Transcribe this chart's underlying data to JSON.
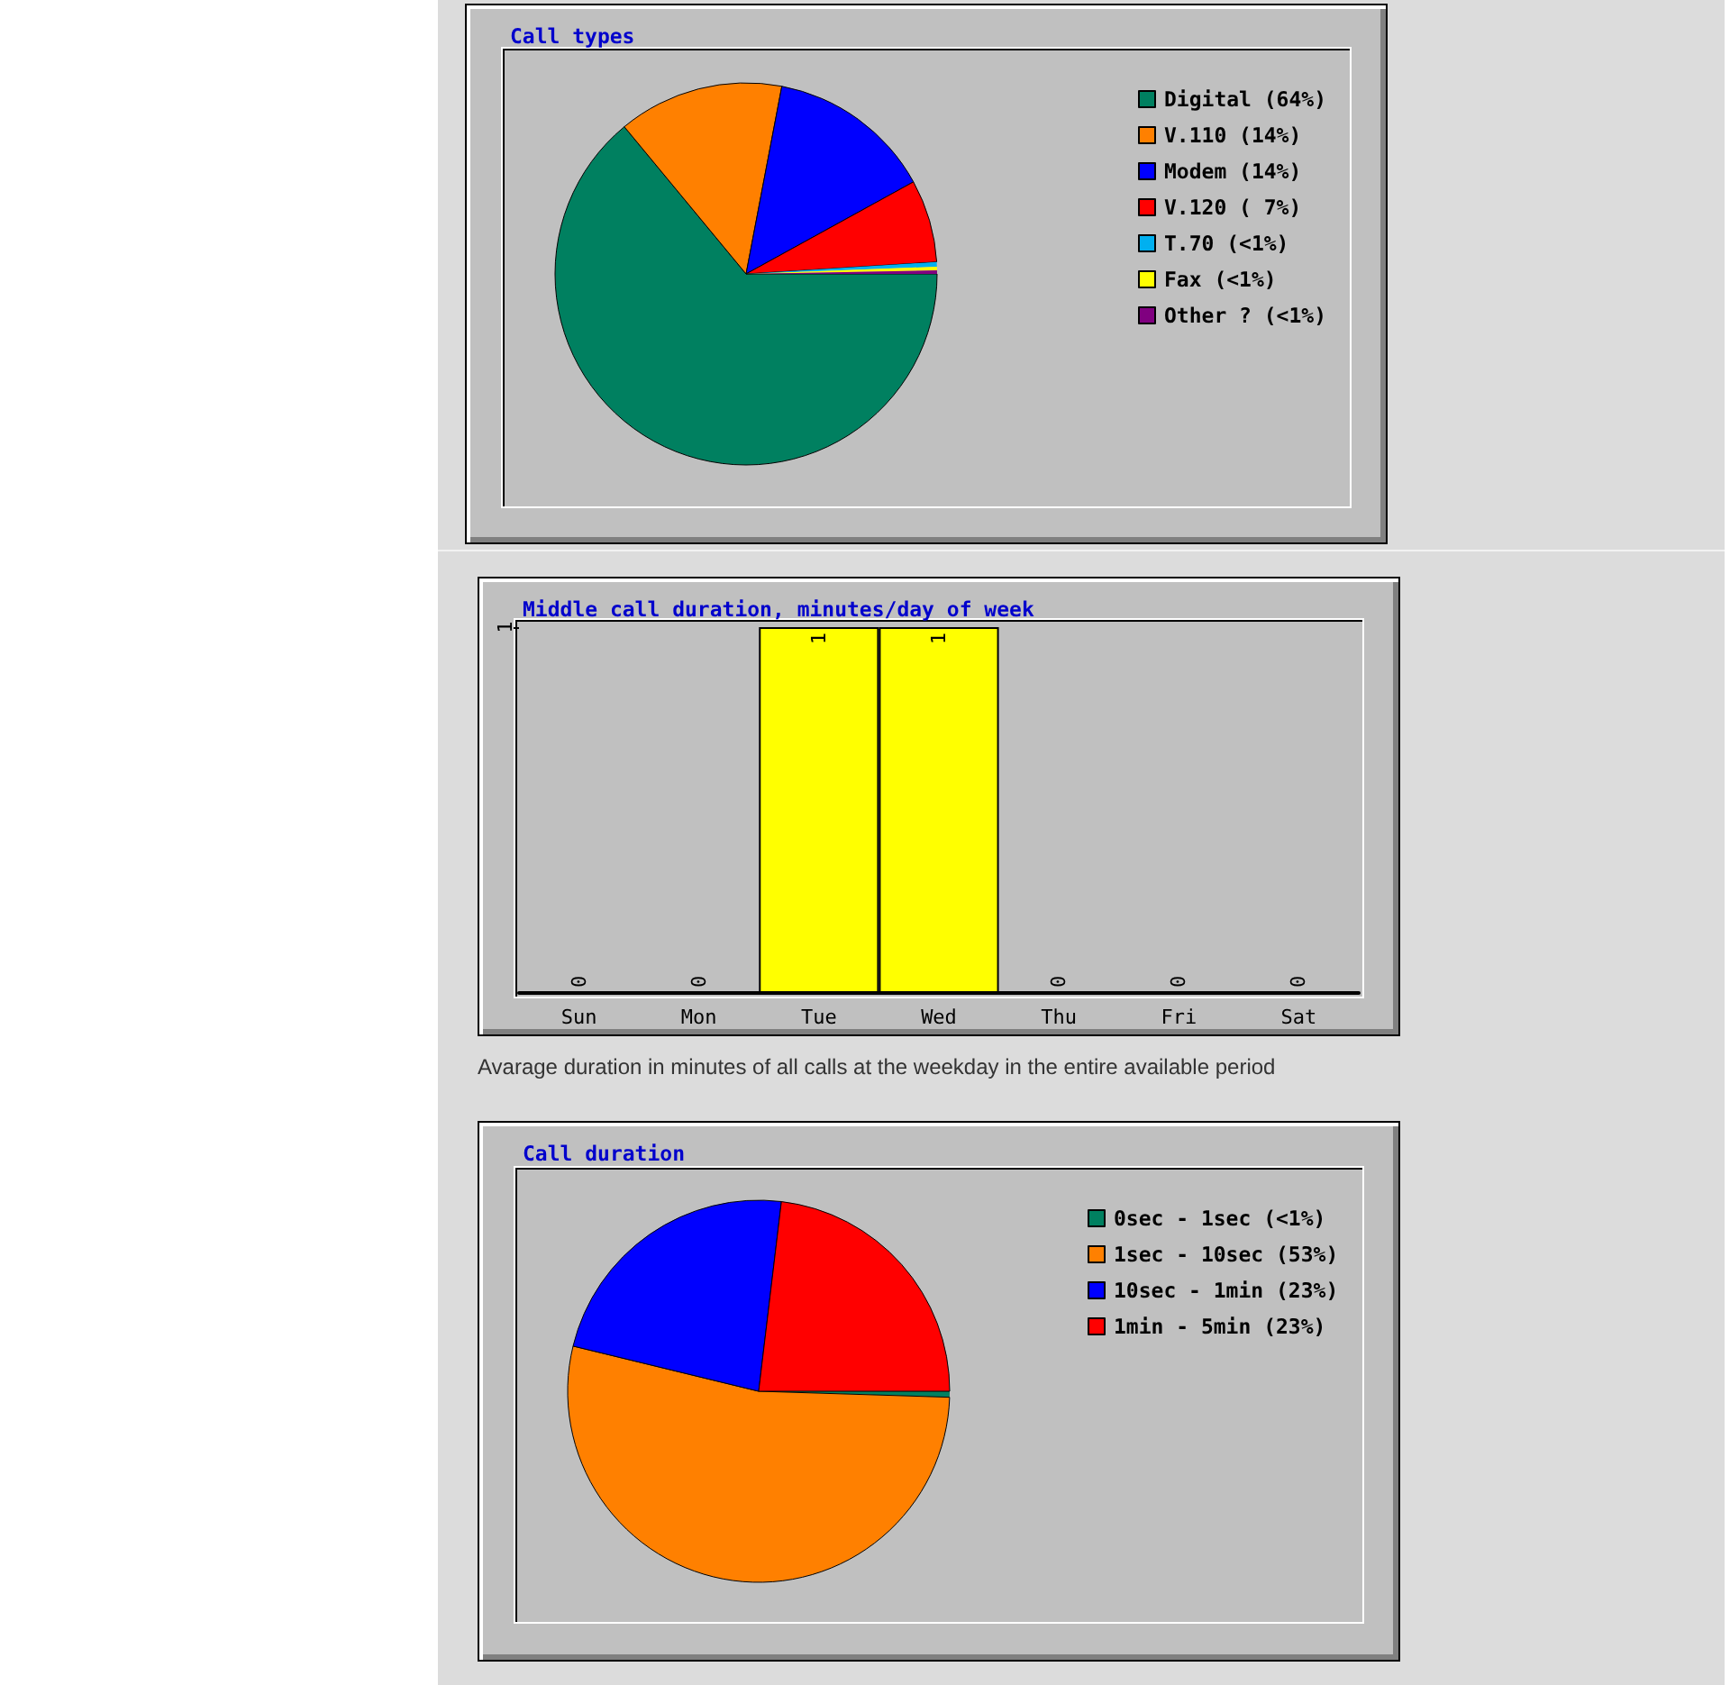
{
  "chart_data": [
    {
      "type": "pie",
      "title": "Call types",
      "categories": [
        "Digital (64%)",
        "V.110 (14%)",
        "Modem (14%)",
        "V.120 ( 7%)",
        "T.70 (<1%)",
        "Fax (<1%)",
        "Other ? (<1%)"
      ],
      "values": [
        64,
        14,
        14,
        7,
        0.4,
        0.3,
        0.3
      ],
      "colors": [
        "#008060",
        "#ff8000",
        "#0000ff",
        "#ff0000",
        "#00b0f0",
        "#ffff00",
        "#800080"
      ],
      "legend": "top right"
    },
    {
      "type": "bar",
      "title": "Middle call duration, minutes/day of week",
      "categories": [
        "Sun",
        "Mon",
        "Tue",
        "Wed",
        "Thu",
        "Fri",
        "Sat"
      ],
      "values": [
        0,
        0,
        1,
        1,
        0,
        0,
        0
      ],
      "color": "#ffff00",
      "ylim": [
        0,
        1
      ],
      "yticks": [
        1
      ],
      "data_labels": true,
      "annotations": [
        "Avarage duration in minutes of all calls at the weekday in the entire available period"
      ]
    },
    {
      "type": "pie",
      "title": "Call duration",
      "categories": [
        "0sec - 1sec (<1%)",
        "1sec - 10sec (53%)",
        "10sec - 1min (23%)",
        "1min - 5min (23%)"
      ],
      "values": [
        0.5,
        53.3,
        23.1,
        23.1
      ],
      "colors": [
        "#008060",
        "#ff8000",
        "#0000ff",
        "#ff0000"
      ],
      "legend": "top right"
    }
  ]
}
